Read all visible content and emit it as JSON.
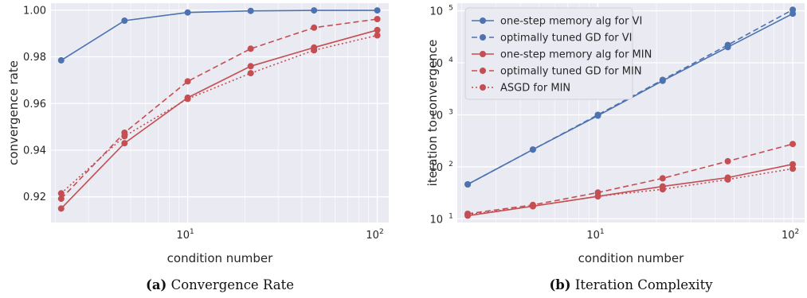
{
  "chart_data": [
    {
      "type": "line",
      "caption_label": "(a)",
      "caption_text": "Convergence Rate",
      "xlabel": "condition number",
      "ylabel": "convergence rate",
      "x_scale": "log",
      "y_scale": "linear",
      "xlim": [
        1.9,
        115
      ],
      "ylim": [
        0.909,
        1.003
      ],
      "x_ticks": [
        10,
        100
      ],
      "x_tick_labels": [
        {
          "base": "10",
          "exp": "1"
        },
        {
          "base": "10",
          "exp": "2"
        }
      ],
      "y_ticks": [
        0.92,
        0.94,
        0.96,
        0.98,
        1.0
      ],
      "y_tick_labels": [
        "0.92",
        "0.94",
        "0.96",
        "0.98",
        "1.00"
      ],
      "grid": true,
      "x": [
        2.15,
        4.64,
        10,
        21.5,
        46.4,
        100
      ],
      "series": [
        {
          "values": [
            0.9785,
            0.9955,
            0.999,
            0.9997,
            0.9999,
            0.9999
          ],
          "color": "#4c72b0",
          "dash": "solid"
        },
        {
          "values": [
            0.915,
            0.943,
            0.9625,
            0.976,
            0.984,
            0.9915
          ],
          "color": "#c44e52",
          "dash": "solid"
        },
        {
          "values": [
            0.9192,
            0.9475,
            0.9695,
            0.9835,
            0.9925,
            0.9962
          ],
          "color": "#c44e52",
          "dash": "dashed"
        },
        {
          "values": [
            0.9215,
            0.946,
            0.962,
            0.973,
            0.9828,
            0.9892
          ],
          "color": "#c44e52",
          "dash": "dotted"
        }
      ]
    },
    {
      "type": "line",
      "caption_label": "(b)",
      "caption_text": "Iteration Complexity",
      "xlabel": "condition number",
      "ylabel": "iteration to convergence",
      "x_scale": "log",
      "y_scale": "log",
      "xlim": [
        1.9,
        115
      ],
      "ylim": [
        8.5,
        140000
      ],
      "x_ticks": [
        10,
        100
      ],
      "x_tick_labels": [
        {
          "base": "10",
          "exp": "1"
        },
        {
          "base": "10",
          "exp": "2"
        }
      ],
      "y_ticks": [
        10,
        100,
        1000,
        10000,
        100000
      ],
      "y_tick_labels": [
        {
          "base": "10",
          "exp": "1"
        },
        {
          "base": "10",
          "exp": "2"
        },
        {
          "base": "10",
          "exp": "3"
        },
        {
          "base": "10",
          "exp": "4"
        },
        {
          "base": "10",
          "exp": "5"
        }
      ],
      "grid": true,
      "legend_position": "top-left",
      "x": [
        2.15,
        4.64,
        10,
        21.5,
        46.4,
        100
      ],
      "series": [
        {
          "name": "one-step memory alg for VI",
          "values": [
            46,
            215,
            960,
            4500,
            20000,
            88000
          ],
          "color": "#4c72b0",
          "dash": "solid"
        },
        {
          "name": "optimally tuned GD for VI",
          "values": [
            46,
            215,
            1000,
            4700,
            22000,
            105000
          ],
          "color": "#4c72b0",
          "dash": "dashed"
        },
        {
          "name": "one-step memory alg for MIN",
          "values": [
            11.5,
            17.5,
            27,
            42,
            62,
            112
          ],
          "color": "#c44e52",
          "dash": "solid"
        },
        {
          "name": "optimally tuned GD for MIN",
          "values": [
            12.5,
            18.5,
            32,
            60,
            128,
            275
          ],
          "color": "#c44e52",
          "dash": "dashed"
        },
        {
          "name": "ASGD for MIN",
          "values": [
            12,
            17.5,
            27,
            37,
            57,
            92
          ],
          "color": "#c44e52",
          "dash": "dotted"
        }
      ]
    }
  ]
}
